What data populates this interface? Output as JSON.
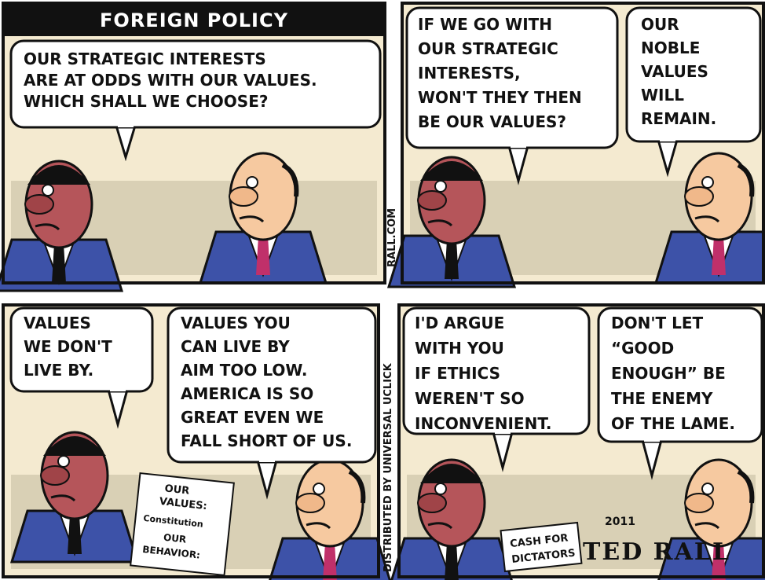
{
  "panels": [
    {
      "header": "FOREIGN POLICY",
      "bubbles": [
        [
          "OUR STRATEGIC INTERESTS",
          "ARE AT ODDS WITH OUR VALUES.",
          "WHICH SHALL WE CHOOSE?"
        ]
      ]
    },
    {
      "bubbles": [
        [
          "IF WE GO WITH",
          "OUR STRATEGIC",
          "INTERESTS,",
          "WON'T THEY THEN",
          "BE OUR VALUES?"
        ],
        [
          "OUR",
          "NOBLE",
          "VALUES",
          "WILL",
          "REMAIN."
        ]
      ]
    },
    {
      "bubbles": [
        [
          "VALUES",
          "WE DON'T",
          "LIVE BY."
        ],
        [
          "VALUES YOU",
          "CAN LIVE BY",
          "AIM TOO LOW.",
          "AMERICA IS SO",
          "GREAT EVEN WE",
          "FALL SHORT OF US."
        ]
      ],
      "props": [
        "OUR",
        "VALUES:",
        "Constitution",
        "OUR",
        "BEHAVIOR:"
      ]
    },
    {
      "bubbles": [
        [
          "I'D ARGUE",
          "WITH YOU",
          "IF ETHICS",
          "WEREN'T SO",
          "INCONVENIENT."
        ],
        [
          "DON'T LET",
          "“GOOD",
          "ENOUGH” BE",
          "THE ENEMY",
          "OF THE LAME."
        ]
      ],
      "props": [
        "CASH FOR",
        "DICTATORS"
      ]
    }
  ],
  "credits": [
    "RALL.COM",
    "DISTRIBUTED BY UNIVERSAL UCLICK"
  ],
  "signature": {
    "year": "2011",
    "name": "TED RALL"
  }
}
